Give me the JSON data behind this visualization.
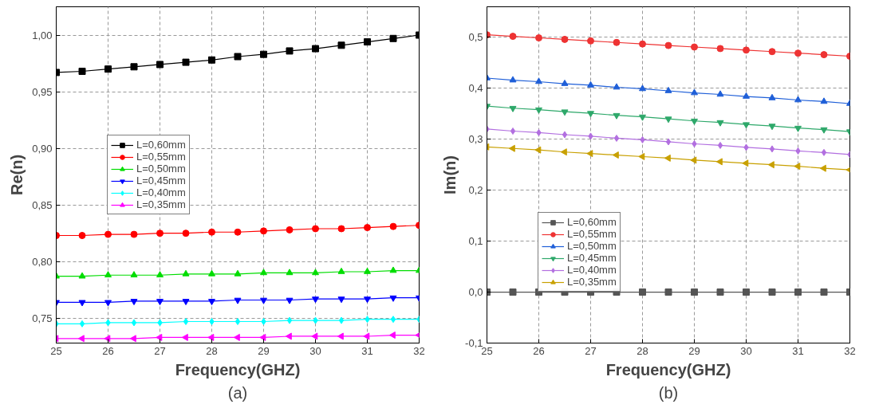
{
  "chart_data": [
    {
      "type": "line",
      "xlabel": "Frequency(GHZ)",
      "ylabel": "Re(n)",
      "annotations": [
        "(a)"
      ],
      "grid": true,
      "legend": "left",
      "line_style": "solid",
      "x": [
        25,
        25.5,
        26,
        26.5,
        27,
        27.5,
        28,
        28.5,
        29,
        29.5,
        30,
        30.5,
        31,
        31.5,
        32
      ],
      "xlim": [
        25,
        32
      ],
      "xticks": [
        25,
        26,
        27,
        28,
        29,
        30,
        31,
        32
      ],
      "ylim": [
        0.728,
        1.025
      ],
      "yticks": [
        {
          "value": 0.75,
          "label": "0,75"
        },
        {
          "value": 0.8,
          "label": "0,80"
        },
        {
          "value": 0.85,
          "label": "0,85"
        },
        {
          "value": 0.9,
          "label": "0,90"
        },
        {
          "value": 0.95,
          "label": "0,95"
        },
        {
          "value": 1.0,
          "label": "1,00"
        }
      ],
      "series": [
        {
          "name": "L=0,60mm",
          "color": "#000000",
          "marker": "square",
          "values": [
            0.967,
            0.968,
            0.97,
            0.972,
            0.974,
            0.976,
            0.978,
            0.981,
            0.983,
            0.986,
            0.988,
            0.991,
            0.994,
            0.997,
            1.0
          ]
        },
        {
          "name": "L=0,55mm",
          "color": "#ff0000",
          "marker": "circle",
          "values": [
            0.823,
            0.823,
            0.824,
            0.824,
            0.825,
            0.825,
            0.826,
            0.826,
            0.827,
            0.828,
            0.829,
            0.829,
            0.83,
            0.831,
            0.832
          ]
        },
        {
          "name": "L=0,50mm",
          "color": "#00dd00",
          "marker": "triangle",
          "values": [
            0.787,
            0.787,
            0.788,
            0.788,
            0.788,
            0.789,
            0.789,
            0.789,
            0.79,
            0.79,
            0.79,
            0.791,
            0.791,
            0.792,
            0.792
          ]
        },
        {
          "name": "L=0,45mm",
          "color": "#0000ff",
          "marker": "triangle-down",
          "values": [
            0.764,
            0.764,
            0.764,
            0.765,
            0.765,
            0.765,
            0.765,
            0.766,
            0.766,
            0.766,
            0.767,
            0.767,
            0.767,
            0.768,
            0.768
          ]
        },
        {
          "name": "L=0,40mm",
          "color": "#00ffff",
          "marker": "diamond",
          "values": [
            0.745,
            0.745,
            0.746,
            0.746,
            0.746,
            0.747,
            0.747,
            0.747,
            0.747,
            0.748,
            0.748,
            0.748,
            0.749,
            0.749,
            0.749
          ]
        },
        {
          "name": "L=0,35mm",
          "color": "#ff00ff",
          "marker": "triangle-left",
          "values": [
            0.732,
            0.732,
            0.732,
            0.732,
            0.733,
            0.733,
            0.733,
            0.733,
            0.733,
            0.734,
            0.734,
            0.734,
            0.734,
            0.735,
            0.735
          ]
        }
      ]
    },
    {
      "type": "line",
      "xlabel": "Frequency(GHZ)",
      "ylabel": "Im(n)",
      "annotations": [
        "(b)"
      ],
      "grid": true,
      "legend": "bottom left",
      "line_style": "solid",
      "x": [
        25,
        25.5,
        26,
        26.5,
        27,
        27.5,
        28,
        28.5,
        29,
        29.5,
        30,
        30.5,
        31,
        31.5,
        32
      ],
      "xlim": [
        25,
        32
      ],
      "xticks": [
        25,
        26,
        27,
        28,
        29,
        30,
        31,
        32
      ],
      "ylim": [
        -0.1,
        0.56
      ],
      "yticks": [
        {
          "value": -0.1,
          "label": "-0,1"
        },
        {
          "value": 0,
          "label": "0,0"
        },
        {
          "value": 0.1,
          "label": "0,1"
        },
        {
          "value": 0.2,
          "label": "0,2"
        },
        {
          "value": 0.3,
          "label": "0,3"
        },
        {
          "value": 0.4,
          "label": "0,4"
        },
        {
          "value": 0.5,
          "label": "0,5"
        }
      ],
      "series": [
        {
          "name": "L=0,60mm",
          "color": "#555555",
          "marker": "square",
          "values": [
            0,
            0,
            0,
            0,
            0,
            0,
            0,
            0,
            0,
            0,
            0,
            0,
            0,
            0,
            0
          ]
        },
        {
          "name": "L=0,55mm",
          "color": "#ee3333",
          "marker": "circle",
          "values": [
            0.505,
            0.502,
            0.499,
            0.496,
            0.493,
            0.49,
            0.487,
            0.484,
            0.481,
            0.478,
            0.475,
            0.472,
            0.469,
            0.466,
            0.463
          ]
        },
        {
          "name": "L=0,50mm",
          "color": "#1f5fd8",
          "marker": "triangle",
          "values": [
            0.42,
            0.416,
            0.413,
            0.409,
            0.406,
            0.402,
            0.399,
            0.395,
            0.391,
            0.388,
            0.384,
            0.381,
            0.377,
            0.374,
            0.37
          ]
        },
        {
          "name": "L=0,45mm",
          "color": "#2ea86a",
          "marker": "triangle-down",
          "values": [
            0.365,
            0.361,
            0.358,
            0.354,
            0.351,
            0.347,
            0.344,
            0.34,
            0.336,
            0.333,
            0.329,
            0.326,
            0.322,
            0.319,
            0.315
          ]
        },
        {
          "name": "L=0,40mm",
          "color": "#b26fe0",
          "marker": "diamond",
          "values": [
            0.32,
            0.316,
            0.313,
            0.309,
            0.306,
            0.302,
            0.299,
            0.295,
            0.291,
            0.288,
            0.284,
            0.281,
            0.277,
            0.274,
            0.27
          ]
        },
        {
          "name": "L=0,35mm",
          "color": "#c8a000",
          "marker": "triangle-left",
          "values": [
            0.285,
            0.282,
            0.279,
            0.275,
            0.272,
            0.269,
            0.266,
            0.263,
            0.259,
            0.256,
            0.253,
            0.25,
            0.247,
            0.243,
            0.24
          ]
        }
      ]
    }
  ]
}
